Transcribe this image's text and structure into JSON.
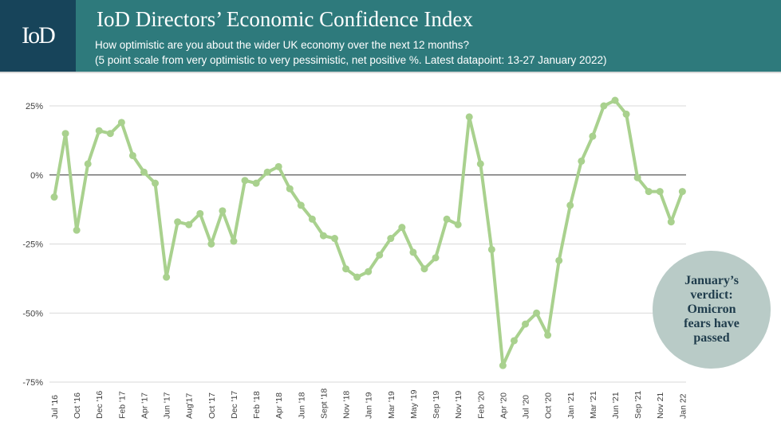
{
  "header": {
    "logo": "IoD",
    "title": "IoD Directors’ Economic Confidence Index",
    "subtitle_line1": "How optimistic are you about the wider UK economy over the next 12 months?",
    "subtitle_line2": "(5 point scale from very optimistic to very pessimistic, net positive %. Latest datapoint: 13-27 January 2022)",
    "background_color": "#2e7a7c",
    "logo_background_color": "#17445a"
  },
  "callout": {
    "text": "January’s verdict: Omicron fears have passed",
    "background_color": "#b9cbc7"
  },
  "chart_data": {
    "type": "line",
    "title": "",
    "xlabel": "",
    "ylabel": "",
    "ylim": [
      -75,
      25
    ],
    "y_ticks": [
      25,
      0,
      -25,
      -50,
      -75
    ],
    "y_tick_labels": [
      "25%",
      "0%",
      "-25%",
      "-50%",
      "-75%"
    ],
    "x_tick_labels": [
      "Jul '16",
      "Oct '16",
      "Dec '16",
      "Feb '17",
      "Apr '17",
      "Jun '17",
      "Aug'17",
      "Oct '17",
      "Dec '17",
      "Feb '18",
      "Apr '18",
      "Jun '18",
      "Sept '18",
      "Nov '18",
      "Jan '19",
      "Mar '19",
      "May '19",
      "Sep '19",
      "Nov '19",
      "Feb '20",
      "Apr '20",
      "Jul '20",
      "Oct '20",
      "Jan '21",
      "Mar '21",
      "Jun '21",
      "Sep '21",
      "Nov 21",
      "Jan 22"
    ],
    "x_tick_positions": [
      0,
      2,
      4,
      6,
      8,
      10,
      12,
      14,
      16,
      18,
      20,
      22,
      24,
      26,
      28,
      30,
      32,
      34,
      36,
      38,
      40,
      42,
      44,
      46,
      48,
      50,
      52,
      54,
      56
    ],
    "grid": true,
    "zero_line": true,
    "line_color": "#a9d18e",
    "series": [
      {
        "values": [
          -8,
          15,
          -20,
          4,
          16,
          15,
          19,
          7,
          1,
          -3,
          -37,
          -17,
          -18,
          -14,
          -25,
          -13,
          -24,
          -2,
          -3,
          1,
          3,
          -5,
          -11,
          -16,
          -22,
          -23,
          -34,
          -37,
          -35,
          -29,
          -23,
          -19,
          -28,
          -34,
          -30,
          -16,
          -18,
          21,
          4,
          -27,
          -69,
          -60,
          -54,
          -50,
          -58,
          -31,
          -11,
          5,
          14,
          25,
          27,
          22,
          -1,
          -6,
          -6,
          -17,
          -6
        ]
      }
    ]
  }
}
